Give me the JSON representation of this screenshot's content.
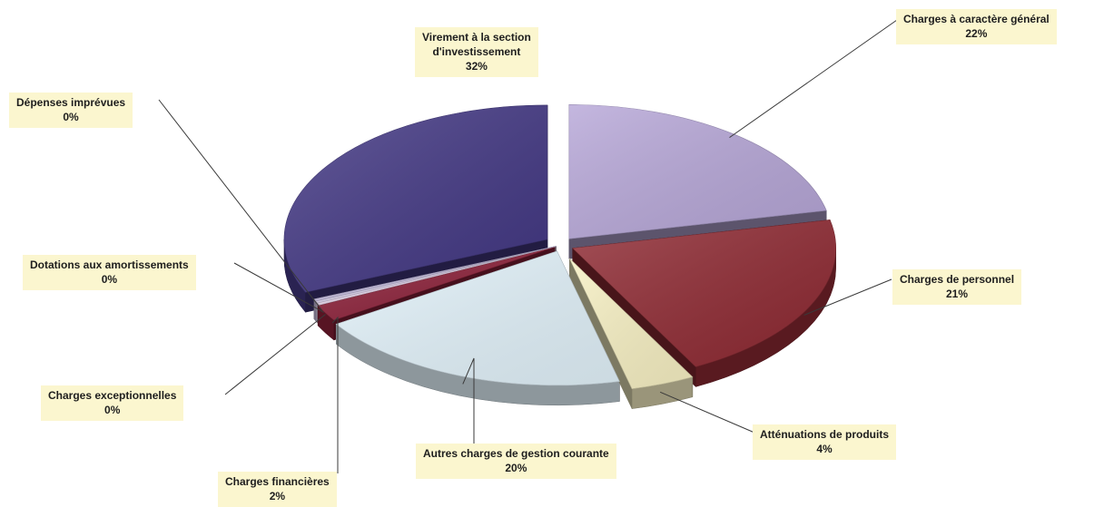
{
  "chart_data": {
    "type": "pie",
    "style": "3d-exploded",
    "slices": [
      {
        "label": "Charges à caractère général",
        "percent_label": "22%",
        "value": 22,
        "color": "#b7a7d8"
      },
      {
        "label": "Charges de personnel",
        "percent_label": "21%",
        "value": 21,
        "color": "#8f2a33"
      },
      {
        "label": "Atténuations de produits",
        "percent_label": "4%",
        "value": 4,
        "color": "#f8f1c4"
      },
      {
        "label": "Autres charges de gestion courante",
        "percent_label": "20%",
        "value": 20,
        "color": "#e3f3fb"
      },
      {
        "label": "Charges financières",
        "percent_label": "2%",
        "value": 2,
        "color": "#8c2039"
      },
      {
        "label": "Charges exceptionnelles",
        "percent_label": "0%",
        "value": 0,
        "color": "#e9d8ee"
      },
      {
        "label": "Dotations aux amortissements",
        "percent_label": "0%",
        "value": 0,
        "color": "#d9d0ea"
      },
      {
        "label": "Dépenses imprévues",
        "percent_label": "0%",
        "value": 0,
        "color": "#c6bde0"
      },
      {
        "label": "Virement à la section d'investissement",
        "label_lines": [
          "Virement à la section",
          "d'investissement"
        ],
        "percent_label": "32%",
        "value": 32,
        "color": "#433884"
      }
    ],
    "label_background": "#fbf6cf",
    "legend": "none"
  }
}
